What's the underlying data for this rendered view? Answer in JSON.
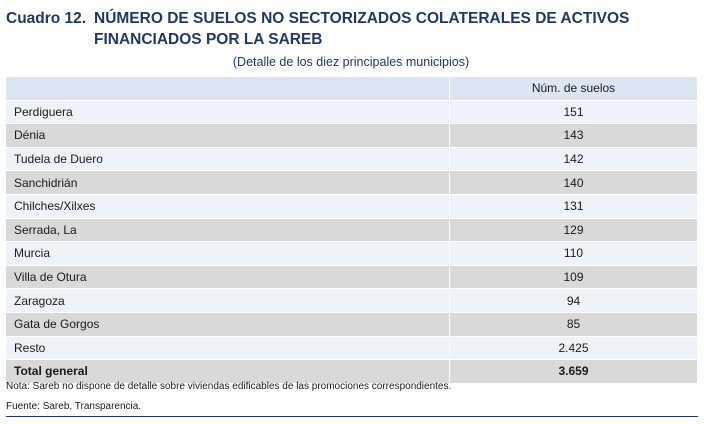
{
  "title": {
    "number": "Cuadro 12.",
    "line1": "NÚMERO DE SUELOS NO SECTORIZADOS COLATERALES DE ACTIVOS",
    "line2": "FINANCIADOS POR LA SAREB"
  },
  "subtitle": "(Detalle de los diez  principales municipios)",
  "table": {
    "header_col1": "",
    "header_col2": "Núm. de suelos",
    "rows": [
      {
        "name": "Perdiguera",
        "value": "151"
      },
      {
        "name": "Dénia",
        "value": "143"
      },
      {
        "name": "Tudela de Duero",
        "value": "142"
      },
      {
        "name": "Sanchidrián",
        "value": "140"
      },
      {
        "name": "Chilches/Xilxes",
        "value": "131"
      },
      {
        "name": "Serrada, La",
        "value": "129"
      },
      {
        "name": "Murcia",
        "value": "110"
      },
      {
        "name": "Villa de Otura",
        "value": "109"
      },
      {
        "name": "Zaragoza",
        "value": "94"
      },
      {
        "name": "Gata de Gorgos",
        "value": "85"
      },
      {
        "name": "Resto",
        "value": "2.425"
      }
    ],
    "total": {
      "name": "Total general",
      "value": "3.659"
    }
  },
  "notes": {
    "nota": "Nota: Sareb no dispone de detalle sobre viviendas edificables de las promociones correspondientes.",
    "fuente": "Fuente: Sareb, Transparencia."
  },
  "colors": {
    "title": "#1f3864",
    "header_bg": "#dce6f2",
    "row_light": "#eef3fa",
    "row_dark": "#d9d9d9"
  }
}
